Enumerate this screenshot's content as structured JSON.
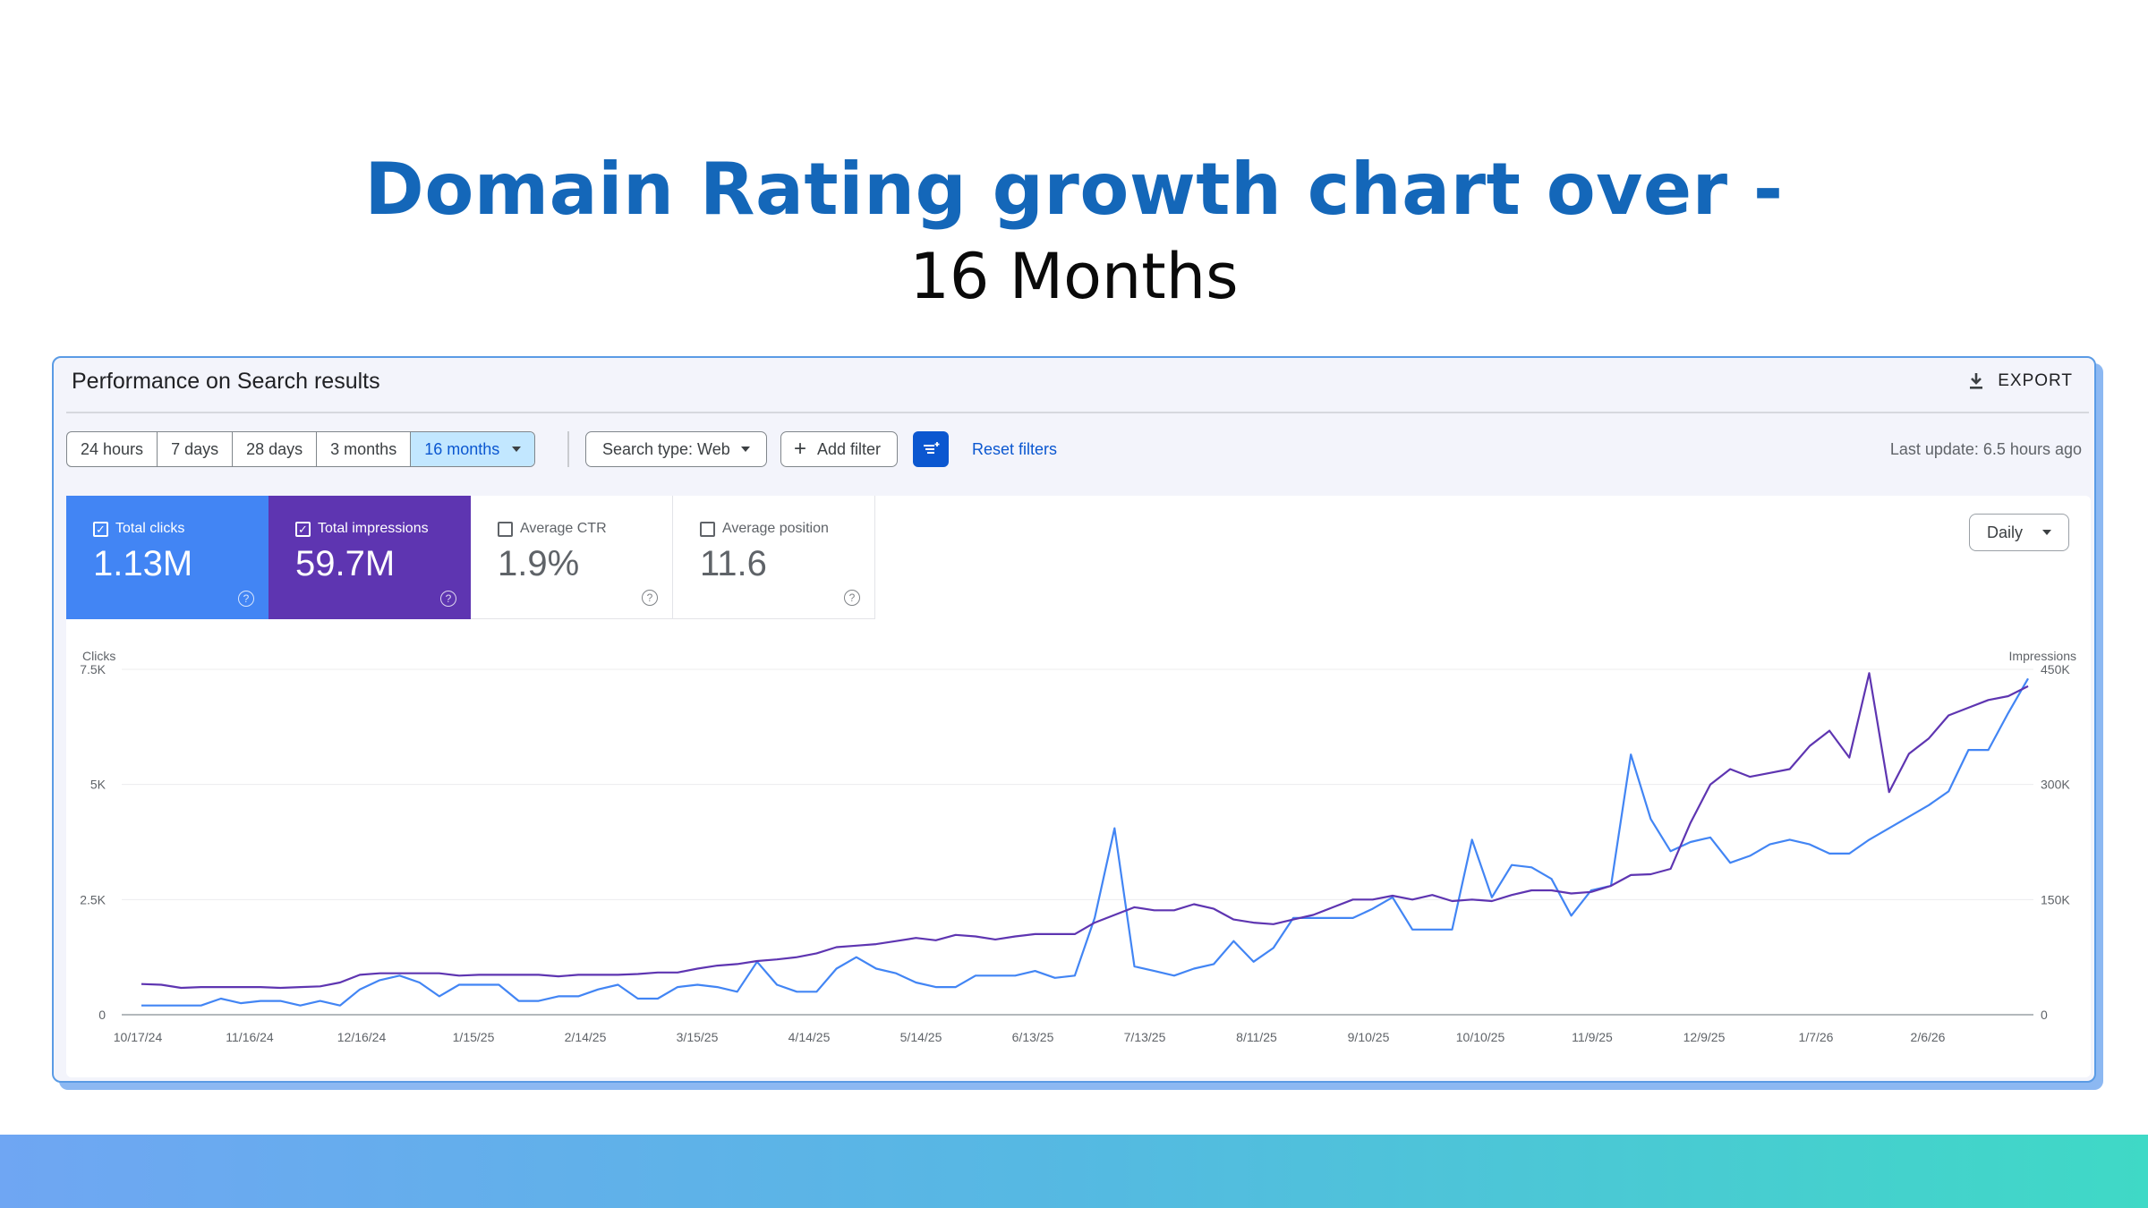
{
  "headline": "Domain Rating growth chart over -",
  "subheadline": "16 Months",
  "card": {
    "title": "Performance on Search results",
    "export_label": "EXPORT",
    "export_icon": "download-icon",
    "date_ranges": [
      "24 hours",
      "7 days",
      "28 days",
      "3 months",
      "16 months"
    ],
    "selected_range": "16 months",
    "search_type_label": "Search type: Web",
    "add_filter_label": "Add filter",
    "filter_icon": "filter-settings-icon",
    "reset_filters_label": "Reset filters",
    "last_update": "Last update: 6.5 hours ago"
  },
  "metrics": [
    {
      "label": "Total clicks",
      "value": "1.13M",
      "checked": true
    },
    {
      "label": "Total impressions",
      "value": "59.7M",
      "checked": true
    },
    {
      "label": "Average CTR",
      "value": "1.9%",
      "checked": false
    },
    {
      "label": "Average position",
      "value": "11.6",
      "checked": false
    }
  ],
  "granularity": "Daily",
  "colors": {
    "accent_title": "#1467b9",
    "clicks": "#4285f4",
    "impressions": "#5e35b1",
    "link": "#0b57d0"
  },
  "chart_data": {
    "type": "line",
    "x_labels": [
      "10/17/24",
      "11/16/24",
      "12/16/24",
      "1/15/25",
      "2/14/25",
      "3/15/25",
      "4/14/25",
      "5/14/25",
      "6/13/25",
      "7/13/25",
      "8/11/25",
      "9/10/25",
      "10/10/25",
      "11/9/25",
      "12/9/25",
      "1/7/26",
      "2/6/26"
    ],
    "y_left": {
      "label": "Clicks",
      "ticks": [
        "0",
        "2.5K",
        "5K",
        "7.5K"
      ],
      "ylim": [
        0,
        7500
      ]
    },
    "y_right": {
      "label": "Impressions",
      "ticks": [
        "0",
        "150K",
        "300K",
        "450K"
      ],
      "ylim": [
        0,
        450000
      ]
    },
    "grid": true,
    "series": [
      {
        "name": "Clicks",
        "axis": "left",
        "values": [
          200,
          200,
          200,
          200,
          350,
          250,
          300,
          300,
          200,
          300,
          200,
          550,
          750,
          850,
          700,
          400,
          650,
          650,
          650,
          300,
          300,
          400,
          400,
          550,
          650,
          350,
          350,
          600,
          650,
          600,
          500,
          1150,
          650,
          500,
          500,
          1000,
          1250,
          1000,
          900,
          700,
          600,
          600,
          850,
          850,
          850,
          950,
          800,
          850,
          2100,
          4050,
          1050,
          950,
          850,
          1000,
          1100,
          1600,
          1150,
          1450,
          2100,
          2100,
          2100,
          2100,
          2300,
          2550,
          1850,
          1850,
          1850,
          3800,
          2550,
          3250,
          3200,
          2950,
          2150,
          2700,
          2800,
          5650,
          4250,
          3550,
          3750,
          3850,
          3300,
          3450,
          3700,
          3800,
          3700,
          3500,
          3500,
          3800,
          4050,
          4300,
          4550,
          4850,
          5750,
          5750,
          6550,
          7300
        ]
      },
      {
        "name": "Impressions",
        "axis": "right",
        "values": [
          40000,
          39000,
          35000,
          36000,
          36000,
          36000,
          36000,
          35000,
          36000,
          37000,
          42000,
          52000,
          54000,
          54000,
          54000,
          54000,
          51000,
          52000,
          52000,
          52000,
          52000,
          50000,
          52000,
          52000,
          52000,
          53000,
          55000,
          55000,
          60000,
          64000,
          66000,
          70000,
          72000,
          75000,
          80000,
          88000,
          90000,
          92000,
          96000,
          100000,
          97000,
          104000,
          102000,
          98000,
          102000,
          105000,
          105000,
          105000,
          120000,
          130000,
          140000,
          136000,
          136000,
          144000,
          138000,
          124000,
          120000,
          118000,
          124000,
          130000,
          140000,
          150000,
          150000,
          155000,
          150000,
          156000,
          148000,
          150000,
          148000,
          156000,
          162000,
          162000,
          158000,
          160000,
          168000,
          182000,
          183000,
          190000,
          250000,
          300000,
          320000,
          310000,
          315000,
          320000,
          350000,
          370000,
          335000,
          445000,
          290000,
          340000,
          360000,
          390000,
          400000,
          410000,
          415000,
          428000
        ]
      }
    ]
  }
}
